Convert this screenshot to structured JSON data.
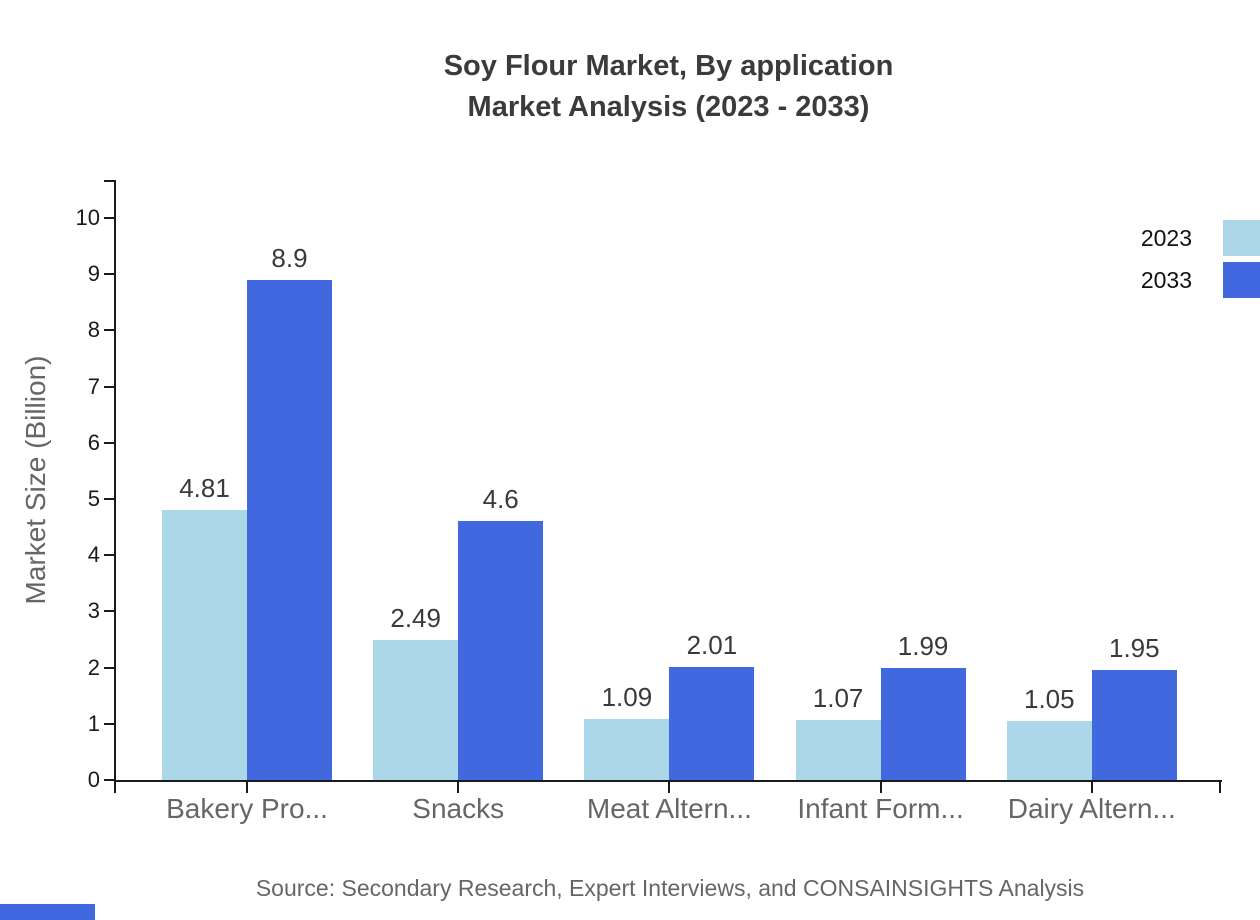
{
  "title": {
    "line1": "Soy Flour Market, By application",
    "line2": "Market Analysis (2023 - 2033)"
  },
  "chart_data": {
    "type": "bar",
    "title": "Soy Flour Market, By application Market Analysis (2023 - 2033)",
    "xlabel": "",
    "ylabel": "Market Size (Billion)",
    "categories": [
      "Bakery Pro...",
      "Snacks",
      "Meat Altern...",
      "Infant Form...",
      "Dairy Altern..."
    ],
    "series": [
      {
        "name": "2023",
        "color": "#ABD7E8",
        "values": [
          4.81,
          2.49,
          1.09,
          1.07,
          1.05
        ]
      },
      {
        "name": "2033",
        "color": "#4268E0",
        "values": [
          8.9,
          4.6,
          2.01,
          1.99,
          1.95
        ]
      }
    ],
    "y_ticks": [
      0,
      1,
      2,
      3,
      4,
      5,
      6,
      7,
      8,
      9,
      10
    ],
    "ylim": [
      0,
      10.7
    ],
    "grid": false,
    "legend_position": "top-right",
    "bar_value_labels": true
  },
  "source_note": "Source: Secondary Research, Expert Interviews, and CONSAINSIGHTS Analysis",
  "colors": {
    "series_2023": "#ABD7E8",
    "series_2033": "#4268E0",
    "axis": "#1a1a1a",
    "title_text": "#3b3b3b",
    "muted_text": "#666666",
    "value_label_text": "#3a3a3a",
    "background": "#ffffff"
  }
}
